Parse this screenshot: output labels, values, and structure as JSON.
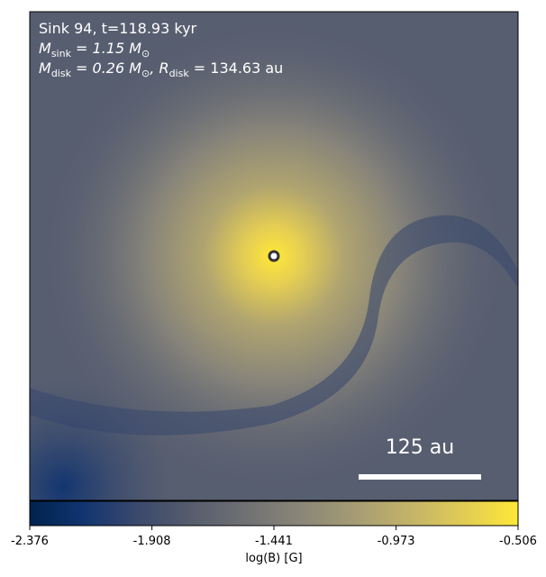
{
  "chart_data": {
    "type": "image",
    "annotations": [
      {
        "parts": [
          "Sink 94, t=118.93 kyr"
        ]
      },
      {
        "parts": [
          "M",
          "sink",
          " = 1.15 M",
          "⊙"
        ]
      },
      {
        "parts": [
          "M",
          "disk",
          " = 0.26 M",
          "⊙",
          ", R",
          "disk",
          " = 134.63 au"
        ]
      }
    ],
    "scale_bar_label": "125 au",
    "colorbar": {
      "label": "log(B) [G]",
      "clim": [
        -2.376,
        -0.506
      ],
      "ticks": [
        -2.376,
        -1.908,
        -1.441,
        -0.973,
        -0.506
      ],
      "colors": [
        "#00224e",
        "#123570",
        "#3b496c",
        "#575d6d",
        "#707173",
        "#8a8678",
        "#a59c74",
        "#c3b369",
        "#e1cc55",
        "#fee838"
      ]
    }
  }
}
